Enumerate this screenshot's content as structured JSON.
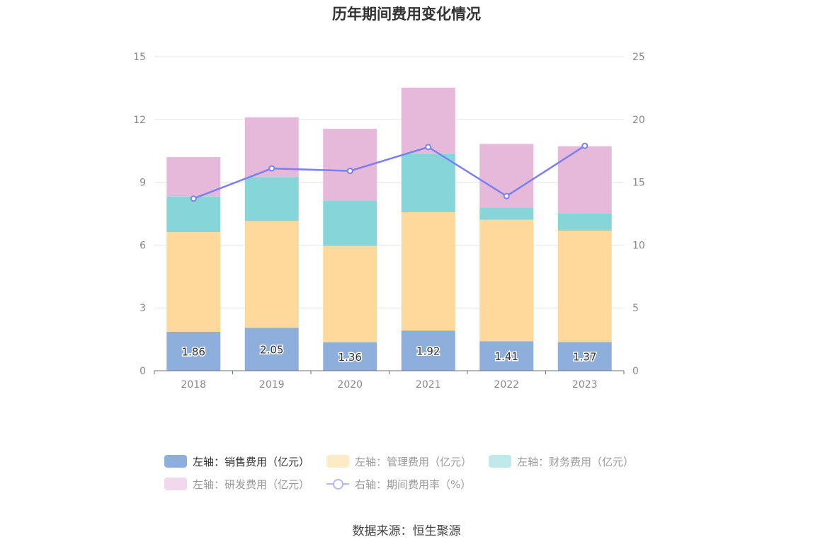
{
  "chart_data": {
    "type": "bar",
    "title": "历年期间费用变化情况",
    "categories": [
      "2018",
      "2019",
      "2020",
      "2021",
      "2022",
      "2023"
    ],
    "stacked": true,
    "y_left": {
      "ticks": [
        "0",
        "3",
        "6",
        "9",
        "12",
        "15"
      ],
      "ylim": [
        0,
        15
      ]
    },
    "y_right": {
      "ticks": [
        "0",
        "5",
        "10",
        "15",
        "20",
        "25"
      ],
      "ylim": [
        0,
        25
      ]
    },
    "grid": true,
    "legend_position": "bottom",
    "series": [
      {
        "name": "左轴：销售费用（亿元）",
        "axis": "left",
        "color": "#8eaedc",
        "values": [
          1.86,
          2.05,
          1.36,
          1.92,
          1.41,
          1.37
        ],
        "labels": [
          "1.86",
          "2.05",
          "1.36",
          "1.92",
          "1.41",
          "1.37"
        ]
      },
      {
        "name": "左轴：管理费用（亿元）",
        "axis": "left",
        "color": "#fed99b",
        "values": [
          4.76,
          5.1,
          4.6,
          5.65,
          5.8,
          5.32
        ]
      },
      {
        "name": "左轴：财务费用（亿元）",
        "axis": "left",
        "color": "#86d5d9",
        "values": [
          1.7,
          2.1,
          2.15,
          2.78,
          0.59,
          0.81
        ]
      },
      {
        "name": "左轴：研发费用（亿元）",
        "axis": "left",
        "color": "#e6b9da",
        "values": [
          1.88,
          2.85,
          3.44,
          3.17,
          3.03,
          3.22
        ]
      },
      {
        "name": "右轴：期间费用率（%）",
        "axis": "right",
        "type": "line",
        "color": "#7b7ff2",
        "values": [
          13.7,
          16.1,
          15.9,
          17.8,
          13.9,
          17.9
        ]
      }
    ]
  },
  "legend": {
    "sales": "左轴：销售费用（亿元）",
    "admin": "左轴：管理费用（亿元）",
    "finance": "左轴：财务费用（亿元）",
    "rnd": "左轴：研发费用（亿元）",
    "rate": "右轴：期间费用率（%）"
  },
  "source": "数据来源：恒生聚源"
}
